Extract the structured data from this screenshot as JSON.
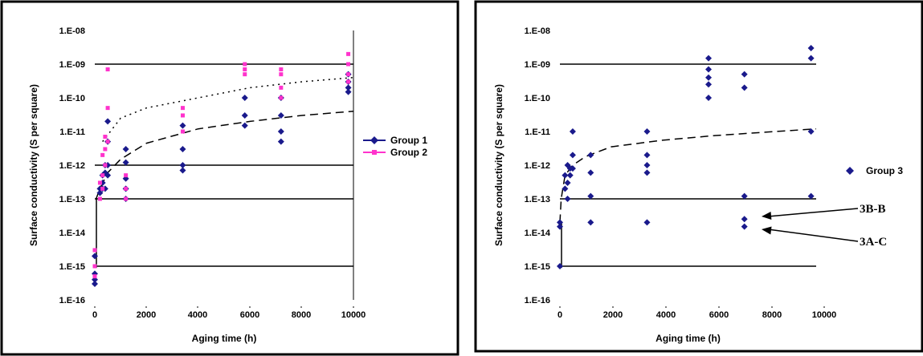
{
  "chart_data": [
    {
      "type": "scatter",
      "title": "",
      "xlabel": "Aging time (h)",
      "ylabel": "Surface conductivity (S per square)",
      "yscale": "log",
      "xlim": [
        0,
        10000
      ],
      "ylim_exp": [
        -16,
        -8
      ],
      "x_ticks": [
        0,
        2000,
        4000,
        6000,
        8000,
        10000
      ],
      "x_tick_labels": [
        "0",
        "2000",
        "4000",
        "6000",
        "8000",
        "10000"
      ],
      "y_tick_labels": [
        "1.E-08",
        "1.E-09",
        "1.E-10",
        "1.E-11",
        "1.E-12",
        "1.E-13",
        "1.E-14",
        "1.E-15",
        "1.E-16"
      ],
      "gridlines_exp": [
        -9,
        -12,
        -13,
        -15
      ],
      "legend_position": "right",
      "series": [
        {
          "name": "Group 1",
          "color": "#1a1a8c",
          "marker": "diamond",
          "trend": "dashed",
          "points": [
            [
              0,
              3e-16
            ],
            [
              0,
              4e-16
            ],
            [
              0,
              6e-16
            ],
            [
              0,
              2e-15
            ],
            [
              200,
              1.5e-13
            ],
            [
              200,
              2e-13
            ],
            [
              300,
              2e-13
            ],
            [
              300,
              3e-13
            ],
            [
              300,
              5e-13
            ],
            [
              400,
              1e-12
            ],
            [
              400,
              2e-13
            ],
            [
              400,
              6e-13
            ],
            [
              500,
              2e-11
            ],
            [
              500,
              5e-12
            ],
            [
              500,
              1e-12
            ],
            [
              500,
              5e-13
            ],
            [
              1200,
              3e-12
            ],
            [
              1200,
              1.2e-12
            ],
            [
              1200,
              4e-13
            ],
            [
              1200,
              2e-13
            ],
            [
              1200,
              1e-13
            ],
            [
              3400,
              1.5e-11
            ],
            [
              3400,
              3e-12
            ],
            [
              3400,
              1e-12
            ],
            [
              3400,
              7e-13
            ],
            [
              5800,
              1e-10
            ],
            [
              5800,
              3e-11
            ],
            [
              5800,
              1.5e-11
            ],
            [
              7200,
              1e-10
            ],
            [
              7200,
              3e-11
            ],
            [
              7200,
              1e-11
            ],
            [
              7200,
              5e-12
            ],
            [
              9800,
              5e-10
            ],
            [
              9800,
              3e-10
            ],
            [
              9800,
              2e-10
            ],
            [
              9800,
              1.5e-10
            ]
          ],
          "trendline": [
            [
              50,
              1e-13
            ],
            [
              200,
              2e-13
            ],
            [
              500,
              6e-13
            ],
            [
              1000,
              1.5e-12
            ],
            [
              2000,
              4.5e-12
            ],
            [
              4000,
              1.2e-11
            ],
            [
              6000,
              2e-11
            ],
            [
              8000,
              3e-11
            ],
            [
              10000,
              4e-11
            ]
          ]
        },
        {
          "name": "Group 2",
          "color": "#ff33cc",
          "marker": "square",
          "trend": "dotted",
          "points": [
            [
              0,
              5e-16
            ],
            [
              0,
              1e-15
            ],
            [
              0,
              3e-15
            ],
            [
              200,
              1e-13
            ],
            [
              200,
              3e-13
            ],
            [
              300,
              2e-13
            ],
            [
              300,
              5e-13
            ],
            [
              300,
              2e-12
            ],
            [
              400,
              1e-12
            ],
            [
              400,
              3e-12
            ],
            [
              400,
              7e-12
            ],
            [
              500,
              7e-10
            ],
            [
              500,
              5e-11
            ],
            [
              500,
              5e-12
            ],
            [
              1200,
              5e-13
            ],
            [
              1200,
              2e-13
            ],
            [
              1200,
              1e-13
            ],
            [
              3400,
              3e-11
            ],
            [
              3400,
              5e-11
            ],
            [
              3400,
              1e-11
            ],
            [
              5800,
              1e-09
            ],
            [
              5800,
              7e-10
            ],
            [
              5800,
              5e-10
            ],
            [
              7200,
              7e-10
            ],
            [
              7200,
              5e-10
            ],
            [
              7200,
              2e-10
            ],
            [
              7200,
              1e-10
            ],
            [
              9800,
              2e-09
            ],
            [
              9800,
              1e-09
            ],
            [
              9800,
              5e-10
            ],
            [
              9800,
              3e-10
            ]
          ],
          "trendline": [
            [
              300,
              5e-12
            ],
            [
              1000,
              2.5e-11
            ],
            [
              2000,
              5e-11
            ],
            [
              4000,
              1e-10
            ],
            [
              6000,
              2e-10
            ],
            [
              8000,
              3e-10
            ],
            [
              10000,
              4e-10
            ]
          ]
        }
      ]
    },
    {
      "type": "scatter",
      "title": "",
      "xlabel": "Aging time (h)",
      "ylabel": "Surface conductivity (S per square)",
      "yscale": "log",
      "xlim": [
        0,
        10000
      ],
      "ylim_exp": [
        -16,
        -8
      ],
      "x_ticks": [
        0,
        2000,
        4000,
        6000,
        8000,
        10000
      ],
      "x_tick_labels": [
        "0",
        "2000",
        "4000",
        "6000",
        "8000",
        "10000"
      ],
      "y_tick_labels": [
        "1.E-08",
        "1.E-09",
        "1.E-10",
        "1.E-11",
        "1.E-12",
        "1.E-13",
        "1.E-14",
        "1.E-15",
        "1.E-16"
      ],
      "gridlines_exp": [
        -9,
        -13,
        -15
      ],
      "legend_position": "right",
      "series": [
        {
          "name": "Group 3",
          "color": "#1a1a8c",
          "marker": "diamond",
          "trend": "dashed",
          "points": [
            [
              0,
              1e-15
            ],
            [
              0,
              1.5e-14
            ],
            [
              0,
              2e-14
            ],
            [
              200,
              2e-13
            ],
            [
              200,
              5e-13
            ],
            [
              300,
              1e-12
            ],
            [
              300,
              3e-13
            ],
            [
              300,
              1e-13
            ],
            [
              400,
              8e-13
            ],
            [
              400,
              5e-13
            ],
            [
              500,
              1e-11
            ],
            [
              500,
              2e-12
            ],
            [
              500,
              8e-13
            ],
            [
              1200,
              2e-12
            ],
            [
              1200,
              6e-13
            ],
            [
              1200,
              1.2e-13
            ],
            [
              1200,
              2e-14
            ],
            [
              3400,
              1e-11
            ],
            [
              3400,
              2e-12
            ],
            [
              3400,
              1e-12
            ],
            [
              3400,
              6e-13
            ],
            [
              3400,
              2e-14
            ],
            [
              5800,
              1.5e-09
            ],
            [
              5800,
              7e-10
            ],
            [
              5800,
              4e-10
            ],
            [
              5800,
              2.5e-10
            ],
            [
              5800,
              1e-10
            ],
            [
              7200,
              5e-10
            ],
            [
              7200,
              2e-10
            ],
            [
              7200,
              1.2e-13
            ],
            [
              7200,
              2.5e-14
            ],
            [
              7200,
              1.5e-14
            ],
            [
              9800,
              3e-09
            ],
            [
              9800,
              1.5e-09
            ],
            [
              9800,
              1e-11
            ],
            [
              9800,
              1.2e-13
            ]
          ],
          "trendline": [
            [
              0,
              2e-14
            ],
            [
              50,
              1e-13
            ],
            [
              200,
              5e-13
            ],
            [
              500,
              1e-12
            ],
            [
              1000,
              1.8e-12
            ],
            [
              2000,
              3.5e-12
            ],
            [
              4000,
              5.5e-12
            ],
            [
              6000,
              7.5e-12
            ],
            [
              8000,
              9.5e-12
            ],
            [
              10000,
              1.2e-11
            ]
          ]
        }
      ],
      "annotations": [
        {
          "text": "3B-B",
          "x": 7200,
          "y": 2.5e-14
        },
        {
          "text": "3A-C",
          "x": 7200,
          "y": 1.5e-14
        }
      ]
    }
  ]
}
